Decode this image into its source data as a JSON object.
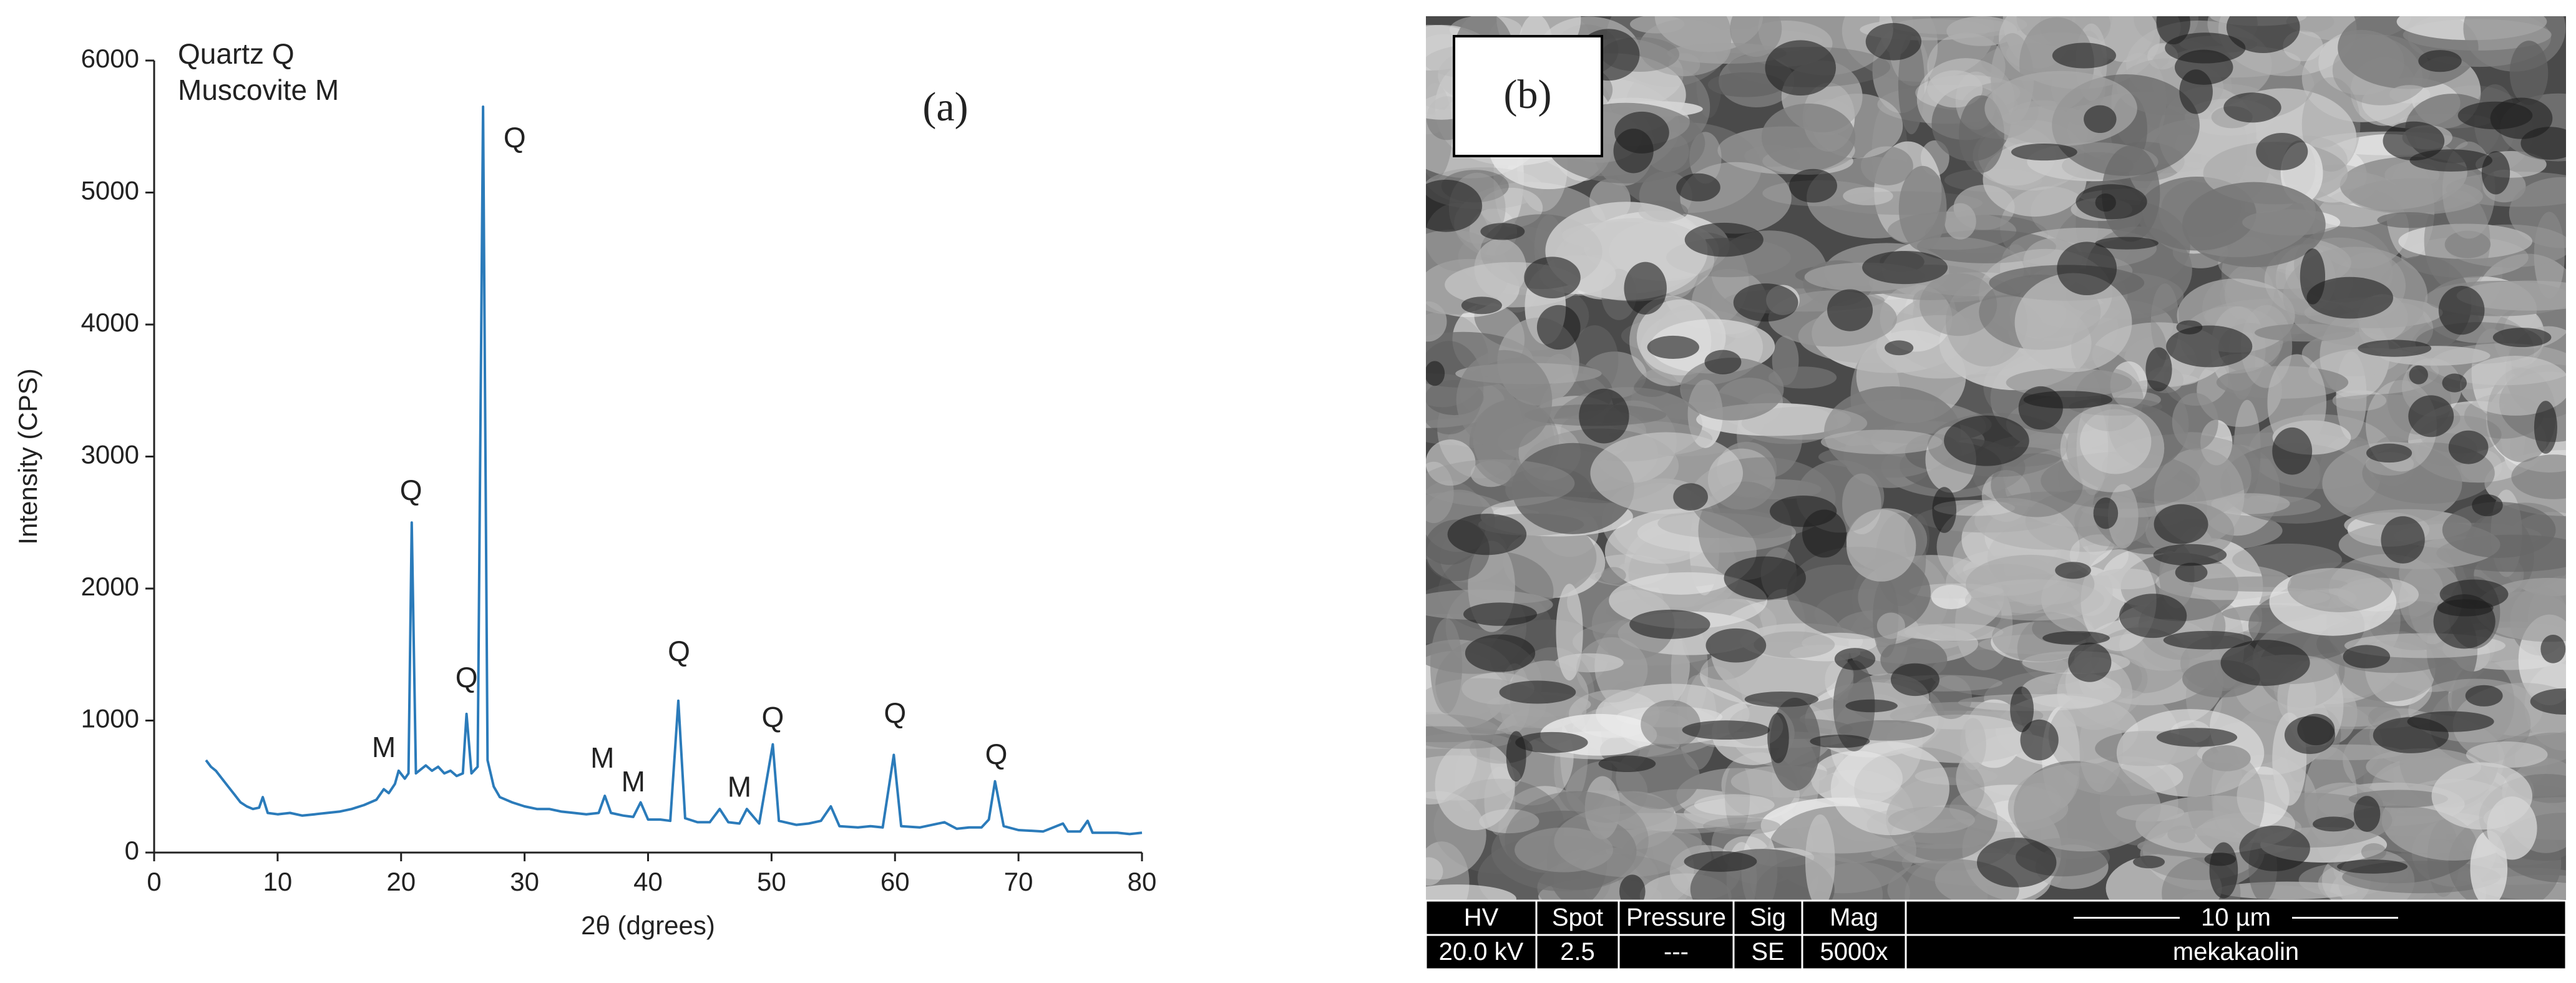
{
  "chart_data": {
    "type": "line",
    "panel_label": "(a)",
    "legend_lines": [
      "Quartz Q",
      "Muscovite M"
    ],
    "xlabel": "2θ (dgrees)",
    "ylabel": "Intensity (CPS)",
    "color": "#2b7bba",
    "x": [
      4.2,
      4.6,
      5,
      5.5,
      6,
      6.5,
      7,
      7.5,
      8,
      8.5,
      8.8,
      9.2,
      10,
      11,
      12,
      13,
      14,
      15,
      16,
      17,
      18,
      18.6,
      19,
      19.5,
      19.8,
      20.3,
      20.6,
      20.86,
      21.2,
      22,
      22.5,
      23,
      23.5,
      24,
      24.5,
      25,
      25.3,
      25.7,
      26.2,
      26.64,
      27,
      27.5,
      28,
      29,
      30,
      31,
      32,
      33,
      34,
      35,
      36,
      36.5,
      37,
      38,
      38.8,
      39.4,
      40,
      41,
      41.8,
      42.45,
      43,
      44,
      45,
      45.8,
      46.5,
      47.4,
      48,
      49,
      50.1,
      50.6,
      52,
      53,
      54,
      54.8,
      55.5,
      57,
      58,
      59,
      59.9,
      60.5,
      62,
      64,
      65,
      66,
      67,
      67.6,
      68.1,
      68.8,
      70,
      72,
      73.6,
      74,
      75,
      75.6,
      76,
      77,
      78,
      79,
      80
    ],
    "values": [
      700,
      650,
      620,
      560,
      500,
      440,
      380,
      350,
      330,
      340,
      420,
      300,
      290,
      300,
      280,
      290,
      300,
      310,
      330,
      360,
      400,
      480,
      450,
      520,
      620,
      560,
      600,
      2500,
      600,
      660,
      620,
      650,
      600,
      620,
      580,
      600,
      1050,
      600,
      650,
      5650,
      700,
      500,
      420,
      380,
      350,
      330,
      330,
      310,
      300,
      290,
      300,
      430,
      300,
      280,
      270,
      380,
      250,
      250,
      240,
      1150,
      260,
      230,
      230,
      330,
      230,
      220,
      330,
      220,
      820,
      240,
      210,
      220,
      240,
      350,
      200,
      190,
      200,
      190,
      740,
      200,
      190,
      230,
      180,
      190,
      190,
      250,
      540,
      200,
      170,
      160,
      220,
      160,
      160,
      240,
      150,
      150,
      150,
      140,
      150
    ],
    "xlim": [
      0,
      80
    ],
    "xticks": [
      0,
      10,
      20,
      30,
      40,
      50,
      60,
      70,
      80
    ],
    "ylim": [
      0,
      6000
    ],
    "yticks": [
      0,
      1000,
      2000,
      3000,
      4000,
      5000,
      6000
    ],
    "annotations": [
      {
        "text": "Q",
        "x": 29.2,
        "y": 5400
      },
      {
        "text": "Q",
        "x": 20.8,
        "y": 2730
      },
      {
        "text": "Q",
        "x": 25.3,
        "y": 1310
      },
      {
        "text": "Q",
        "x": 42.5,
        "y": 1510
      },
      {
        "text": "Q",
        "x": 50.1,
        "y": 1010
      },
      {
        "text": "Q",
        "x": 60,
        "y": 1040
      },
      {
        "text": "Q",
        "x": 68.2,
        "y": 730
      },
      {
        "text": "M",
        "x": 18.6,
        "y": 780
      },
      {
        "text": "M",
        "x": 36.3,
        "y": 700
      },
      {
        "text": "M",
        "x": 38.8,
        "y": 520
      },
      {
        "text": "M",
        "x": 47.4,
        "y": 480
      }
    ]
  },
  "panel_b": {
    "label": "(b)",
    "info_headers": [
      "HV",
      "Spot",
      "Pressure",
      "Sig",
      "Mag"
    ],
    "info_values": [
      "20.0 kV",
      "2.5",
      "---",
      "SE",
      "5000x"
    ],
    "scale_bar": "10 µm",
    "sample": "mekakaolin"
  }
}
